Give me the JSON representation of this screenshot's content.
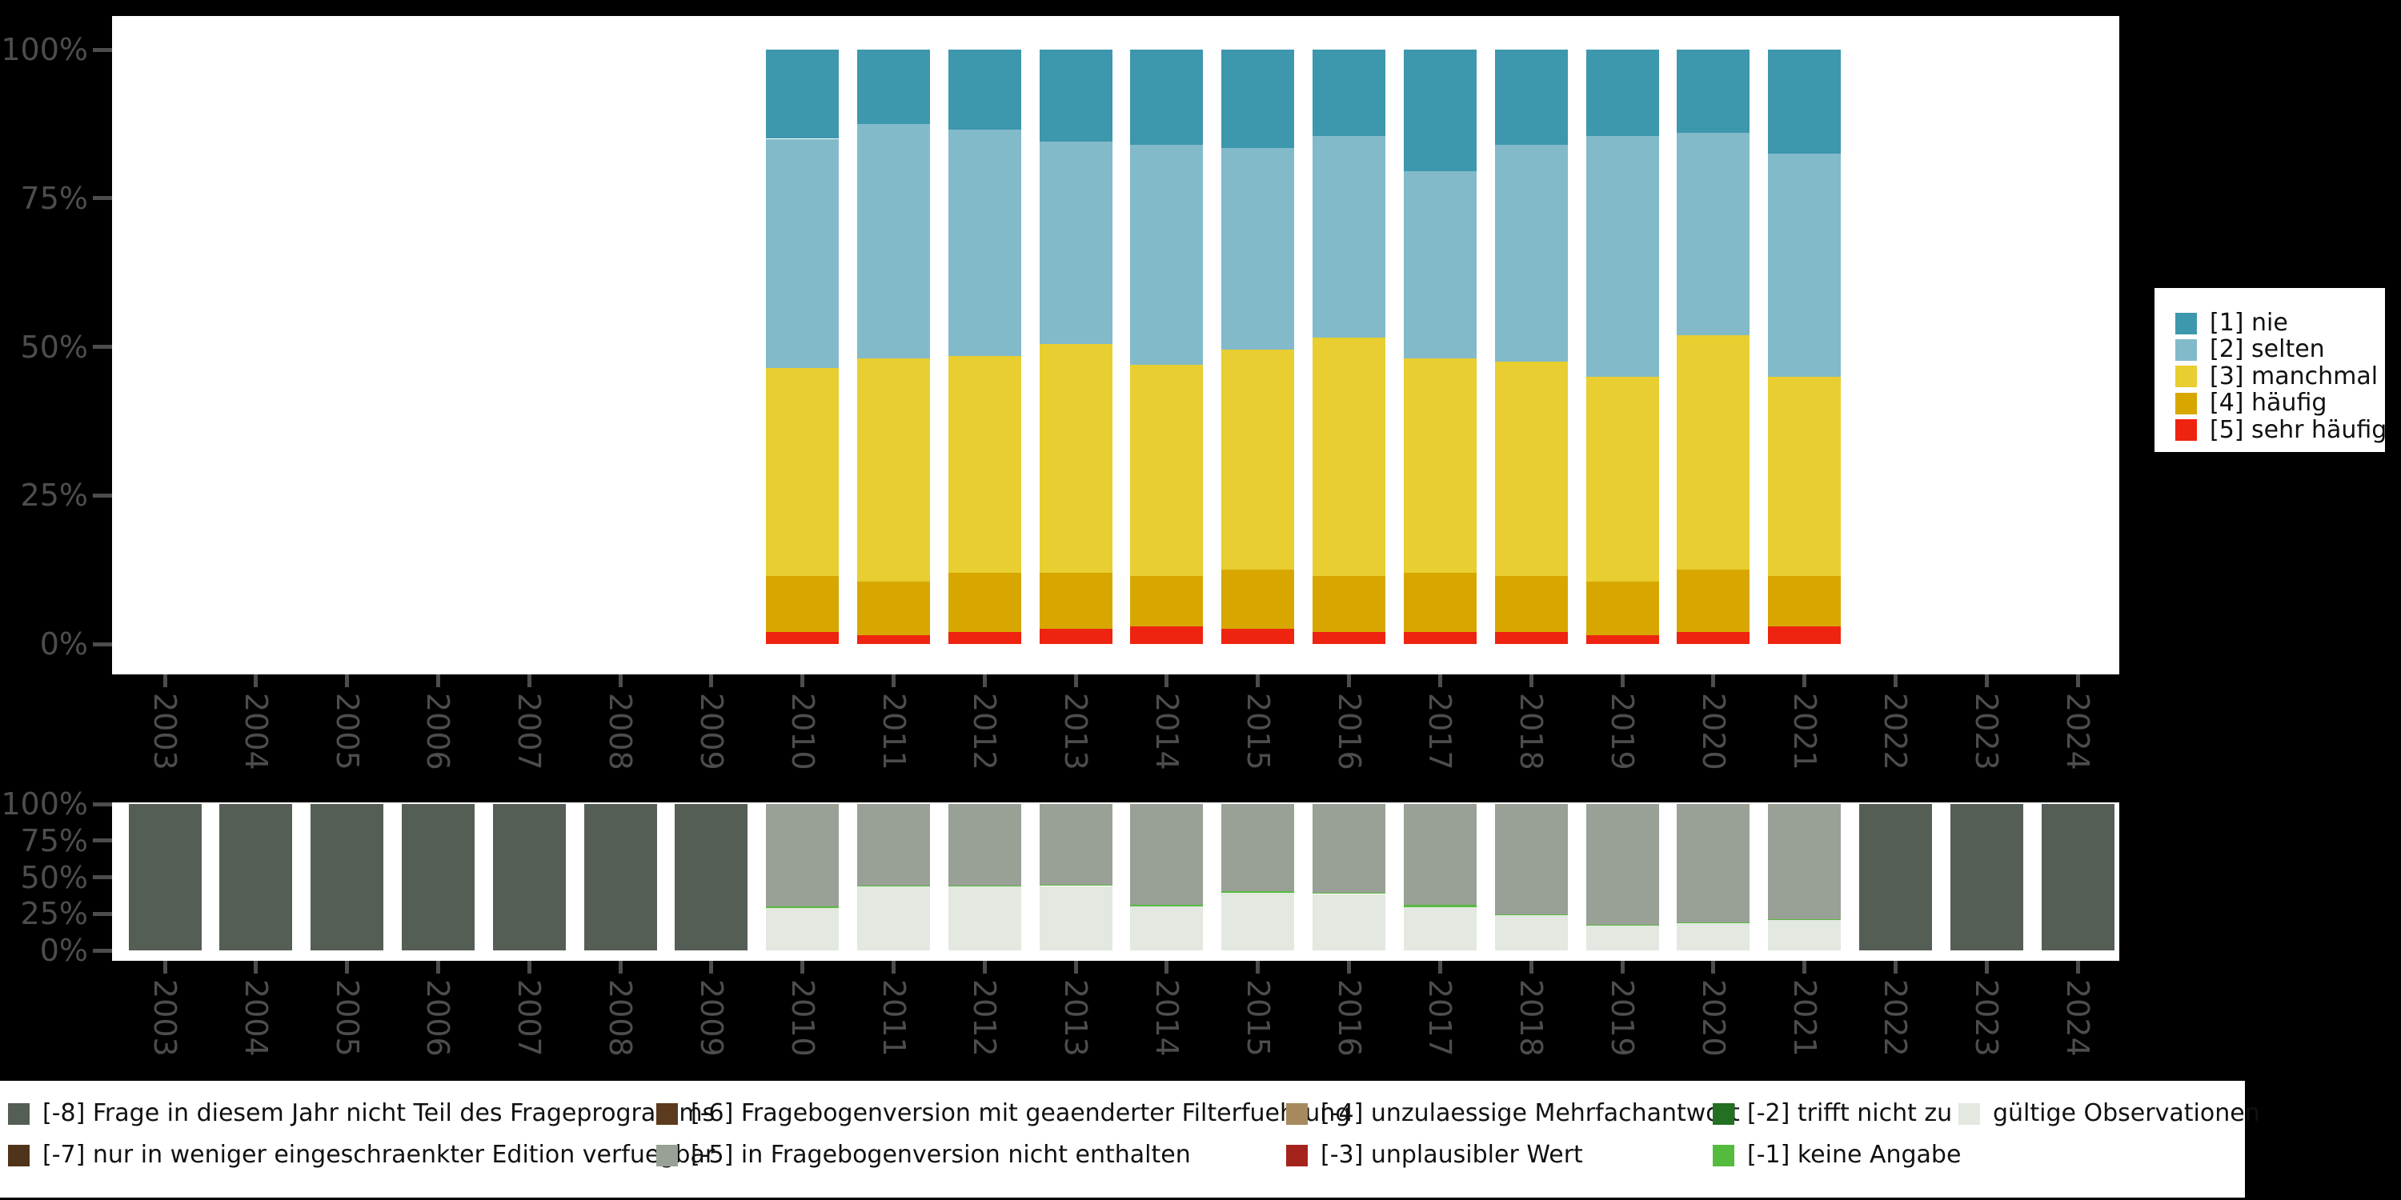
{
  "page": {
    "background": "#000000",
    "plot_background": "#ffffff",
    "axis_text_color": "#4d4d4d"
  },
  "x_years": [
    "2003",
    "2004",
    "2005",
    "2006",
    "2007",
    "2008",
    "2009",
    "2010",
    "2011",
    "2012",
    "2013",
    "2014",
    "2015",
    "2016",
    "2017",
    "2018",
    "2019",
    "2020",
    "2021",
    "2022",
    "2023",
    "2024"
  ],
  "chart_data": [
    {
      "type": "bar",
      "stacked": true,
      "unit": "percent of valid answers",
      "title": "",
      "xlabel": "",
      "ylabel": "",
      "ylim": [
        0,
        100
      ],
      "ytick_labels": [
        "0%",
        "25%",
        "50%",
        "75%",
        "100%"
      ],
      "grid": false,
      "categories": [
        "2010",
        "2011",
        "2012",
        "2013",
        "2014",
        "2015",
        "2016",
        "2017",
        "2018",
        "2019",
        "2020",
        "2021"
      ],
      "series": [
        {
          "name": "[5] sehr häufig",
          "color": "#ee2410",
          "values": [
            2,
            1.5,
            2,
            2.5,
            3,
            2.5,
            2,
            2,
            2,
            1.5,
            2,
            3
          ]
        },
        {
          "name": "[4] häufig",
          "color": "#d7a700",
          "values": [
            9.5,
            9,
            10,
            9.5,
            8.5,
            10,
            9.5,
            10,
            9.5,
            9,
            10.5,
            8.5
          ]
        },
        {
          "name": "[3] manchmal",
          "color": "#e8ce30",
          "values": [
            35,
            37.5,
            36.5,
            38.5,
            35.5,
            37,
            40,
            36,
            36,
            34.5,
            39.5,
            33.5
          ]
        },
        {
          "name": "[2] selten",
          "color": "#82bac9",
          "values": [
            38.5,
            39.5,
            38,
            34,
            37,
            34,
            34,
            31.5,
            36.5,
            40.5,
            34,
            37.5
          ]
        },
        {
          "name": "[1] nie",
          "color": "#3d97ad",
          "values": [
            15,
            12.5,
            13.5,
            15.5,
            16,
            16.5,
            14.5,
            20.5,
            16,
            14.5,
            14,
            17.5
          ]
        }
      ],
      "legend": {
        "position": "right",
        "entries": [
          {
            "label": "[1] nie",
            "color": "#3d97ad"
          },
          {
            "label": "[2] selten",
            "color": "#82bac9"
          },
          {
            "label": "[3] manchmal",
            "color": "#e8ce30"
          },
          {
            "label": "[4] häufig",
            "color": "#d7a700"
          },
          {
            "label": "[5] sehr häufig",
            "color": "#ee2410"
          }
        ]
      }
    },
    {
      "type": "bar",
      "stacked": true,
      "unit": "percent of all observations",
      "title": "",
      "xlabel": "",
      "ylabel": "",
      "ylim": [
        0,
        100
      ],
      "ytick_labels": [
        "0%",
        "25%",
        "50%",
        "75%",
        "100%"
      ],
      "grid": false,
      "categories": [
        "2003",
        "2004",
        "2005",
        "2006",
        "2007",
        "2008",
        "2009",
        "2010",
        "2011",
        "2012",
        "2013",
        "2014",
        "2015",
        "2016",
        "2017",
        "2018",
        "2019",
        "2020",
        "2021",
        "2022",
        "2023",
        "2024"
      ],
      "series": [
        {
          "name": "gültige Observationen",
          "color": "#e3e8e0",
          "values": [
            0,
            0,
            0,
            0,
            0,
            0,
            0,
            29,
            43.5,
            43.5,
            44,
            30,
            39.5,
            38.5,
            29.5,
            24,
            17,
            19,
            21,
            0,
            0,
            0
          ]
        },
        {
          "name": "[-1] keine Angabe",
          "color": "#55bb3f",
          "values": [
            0,
            0,
            0,
            0,
            0,
            0,
            0,
            1,
            1,
            1,
            1,
            1,
            1,
            1,
            1.5,
            0.4,
            0.3,
            0.3,
            0.4,
            0,
            0,
            0
          ]
        },
        {
          "name": "[-5] in Fragebogenversion nicht enthalten",
          "color": "#99a095",
          "values": [
            0,
            0,
            0,
            0,
            0,
            0,
            0,
            70,
            55.5,
            55.5,
            55,
            69,
            59.5,
            60.5,
            69,
            75.6,
            82.7,
            80.7,
            78.6,
            0,
            0,
            0
          ]
        },
        {
          "name": "[-8] Frage in diesem Jahr nicht Teil des Frageprogramms",
          "color": "#555e55",
          "values": [
            100,
            100,
            100,
            100,
            100,
            100,
            100,
            0,
            0,
            0,
            0,
            0,
            0,
            0,
            0,
            0,
            0,
            0,
            0,
            100,
            100,
            100
          ]
        }
      ]
    }
  ],
  "missing_legend": {
    "entries": [
      {
        "label": "[-8] Frage in diesem Jahr nicht Teil des Frageprogramms",
        "color": "#555e55"
      },
      {
        "label": "[-7] nur in weniger eingeschraenkter Edition verfuegbar",
        "color": "#4f341b"
      },
      {
        "label": "[-6] Fragebogenversion mit geaenderter Filterfuehrung",
        "color": "#5c3a1d"
      },
      {
        "label": "[-5] in Fragebogenversion nicht enthalten",
        "color": "#99a095"
      },
      {
        "label": "[-4] unzulaessige Mehrfachantwort",
        "color": "#a68a5e"
      },
      {
        "label": "[-3] unplausibler Wert",
        "color": "#a5231d"
      },
      {
        "label": "[-2] trifft nicht zu",
        "color": "#237023"
      },
      {
        "label": "[-1] keine Angabe",
        "color": "#55bb3f"
      },
      {
        "label": "gültige Observationen",
        "color": "#e3e8e0"
      }
    ]
  }
}
